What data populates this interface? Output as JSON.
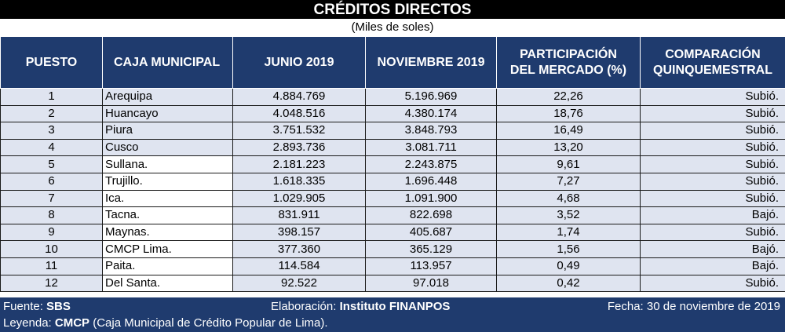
{
  "title": "CRÉDITOS DIRECTOS",
  "subtitle": "(Miles de soles)",
  "columns": {
    "puesto": "PUESTO",
    "caja": "CAJA MUNICIPAL",
    "junio_l1": "JUNIO 2019",
    "nov_l1": "NOVIEMBRE 2019",
    "part_l1": "PARTICIPACIÓN",
    "part_l2": "DEL MERCADO (%)",
    "comp_l1": "COMPARACIÓN",
    "comp_l2": "QUINQUEMESTRAL"
  },
  "rows": [
    {
      "puesto": "1",
      "caja": "Arequipa",
      "junio": "4.884.769",
      "nov": "5.196.969",
      "part": "22,26",
      "comp": "Subió."
    },
    {
      "puesto": "2",
      "caja": "Huancayo",
      "junio": "4.048.516",
      "nov": "4.380.174",
      "part": "18,76",
      "comp": "Subió."
    },
    {
      "puesto": "3",
      "caja": "Piura",
      "junio": "3.751.532",
      "nov": "3.848.793",
      "part": "16,49",
      "comp": "Subió."
    },
    {
      "puesto": "4",
      "caja": "Cusco",
      "junio": "2.893.736",
      "nov": "3.081.711",
      "part": "13,20",
      "comp": "Subió."
    },
    {
      "puesto": "5",
      "caja": "Sullana.",
      "junio": "2.181.223",
      "nov": "2.243.875",
      "part": "9,61",
      "comp": "Subió."
    },
    {
      "puesto": "6",
      "caja": "Trujillo.",
      "junio": "1.618.335",
      "nov": "1.696.448",
      "part": "7,27",
      "comp": "Subió."
    },
    {
      "puesto": "7",
      "caja": "Ica.",
      "junio": "1.029.905",
      "nov": "1.091.900",
      "part": "4,68",
      "comp": "Subió."
    },
    {
      "puesto": "8",
      "caja": "Tacna.",
      "junio": "831.911",
      "nov": "822.698",
      "part": "3,52",
      "comp": "Bajó."
    },
    {
      "puesto": "9",
      "caja": "Maynas.",
      "junio": "398.157",
      "nov": "405.687",
      "part": "1,74",
      "comp": "Subió."
    },
    {
      "puesto": "10",
      "caja": "CMCP Lima.",
      "junio": "377.360",
      "nov": "365.129",
      "part": "1,56",
      "comp": "Bajó."
    },
    {
      "puesto": "11",
      "caja": "Paita.",
      "junio": "114.584",
      "nov": "113.957",
      "part": "0,49",
      "comp": "Bajó."
    },
    {
      "puesto": "12",
      "caja": "Del Santa.",
      "junio": "92.522",
      "nov": "97.018",
      "part": "0,42",
      "comp": "Subió."
    }
  ],
  "footer": {
    "fuente_label": "Fuente: ",
    "fuente_value": "SBS",
    "elab_label": "Elaboración: ",
    "elab_value": "Instituto FINANPOS",
    "fecha": "Fecha: 30 de noviembre de 2019",
    "leyenda_label": "Leyenda: ",
    "leyenda_value": "CMCP",
    "leyenda_rest": " (Caja Municipal de Crédito Popular de Lima)."
  }
}
